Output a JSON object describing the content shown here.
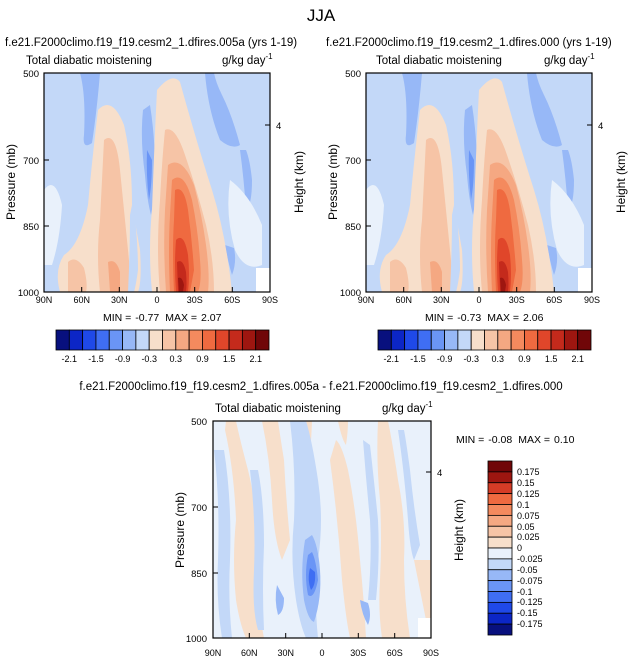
{
  "figure": {
    "title": "JJA"
  },
  "colors": {
    "neg": [
      "#08107e",
      "#0c26c6",
      "#1f49e8",
      "#3f6ef3",
      "#6a95f6",
      "#97b8f7",
      "#c3d8f8"
    ],
    "neutral": "#e9f1fb",
    "pos": [
      "#f7dfcb",
      "#f6c4a6",
      "#f5a882",
      "#f48a5e",
      "#ef6a40",
      "#e0462a",
      "#c42a1c",
      "#9e1610",
      "#700608"
    ],
    "diffpos": [
      "#f7dfcb",
      "#f6c4a6",
      "#f5a882",
      "#f48a5e",
      "#ef6a40",
      "#d53c26",
      "#9e1610",
      "#700608"
    ]
  },
  "chart_data": [
    {
      "type": "heatmap",
      "title": "f.e21.F2000climo.f19_f19.cesm2_1.dfires.005a (yrs 1-19)",
      "left_label": "Total diabatic moistening",
      "units": "g/kg day",
      "units_exp": "-1",
      "ylabel": "Pressure (mb)",
      "y2label": "Height (km)",
      "y2ticks": [
        "4"
      ],
      "x_ticks": [
        "90N",
        "60N",
        "30N",
        "0",
        "30S",
        "60S",
        "90S"
      ],
      "y_ticks": [
        "500",
        "700",
        "850",
        "1000"
      ],
      "stats": {
        "min_label": "MIN =",
        "min": "-0.77",
        "max_label": "MAX =",
        "max": "2.07"
      },
      "colorbar": {
        "labels": [
          "-2.1",
          "-1.5",
          "-0.9",
          "-0.3",
          "0.3",
          "0.9",
          "1.5",
          "2.1"
        ]
      }
    },
    {
      "type": "heatmap",
      "title": "f.e21.F2000climo.f19_f19.cesm2_1.dfires.000 (yrs 1-19)",
      "left_label": "Total diabatic moistening",
      "units": "g/kg day",
      "units_exp": "-1",
      "ylabel": "Pressure (mb)",
      "y2label": "Height (km)",
      "y2ticks": [
        "4"
      ],
      "x_ticks": [
        "90N",
        "60N",
        "30N",
        "0",
        "30S",
        "60S",
        "90S"
      ],
      "y_ticks": [
        "500",
        "700",
        "850",
        "1000"
      ],
      "stats": {
        "min_label": "MIN =",
        "min": "-0.73",
        "max_label": "MAX =",
        "max": "2.06"
      },
      "colorbar": {
        "labels": [
          "-2.1",
          "-1.5",
          "-0.9",
          "-0.3",
          "0.3",
          "0.9",
          "1.5",
          "2.1"
        ]
      }
    },
    {
      "type": "heatmap",
      "title": "f.e21.F2000climo.f19_f19.cesm2_1.dfires.005a - f.e21.F2000climo.f19_f19.cesm2_1.dfires.000",
      "left_label": "Total diabatic moistening",
      "units": "g/kg day",
      "units_exp": "-1",
      "ylabel": "Pressure (mb)",
      "y2label": "Height (km)",
      "y2ticks": [
        "4"
      ],
      "x_ticks": [
        "90N",
        "60N",
        "30N",
        "0",
        "30S",
        "60S",
        "90S"
      ],
      "y_ticks": [
        "500",
        "700",
        "850",
        "1000"
      ],
      "stats": {
        "min_label": "MIN =",
        "min": "-0.08",
        "max_label": "MAX =",
        "max": "0.10"
      },
      "colorbar": {
        "labels": [
          "0.175",
          "0.15",
          "0.125",
          "0.1",
          "0.075",
          "0.05",
          "0.025",
          "0",
          "-0.025",
          "-0.05",
          "-0.075",
          "-0.1",
          "-0.125",
          "-0.15",
          "-0.175"
        ]
      }
    }
  ]
}
